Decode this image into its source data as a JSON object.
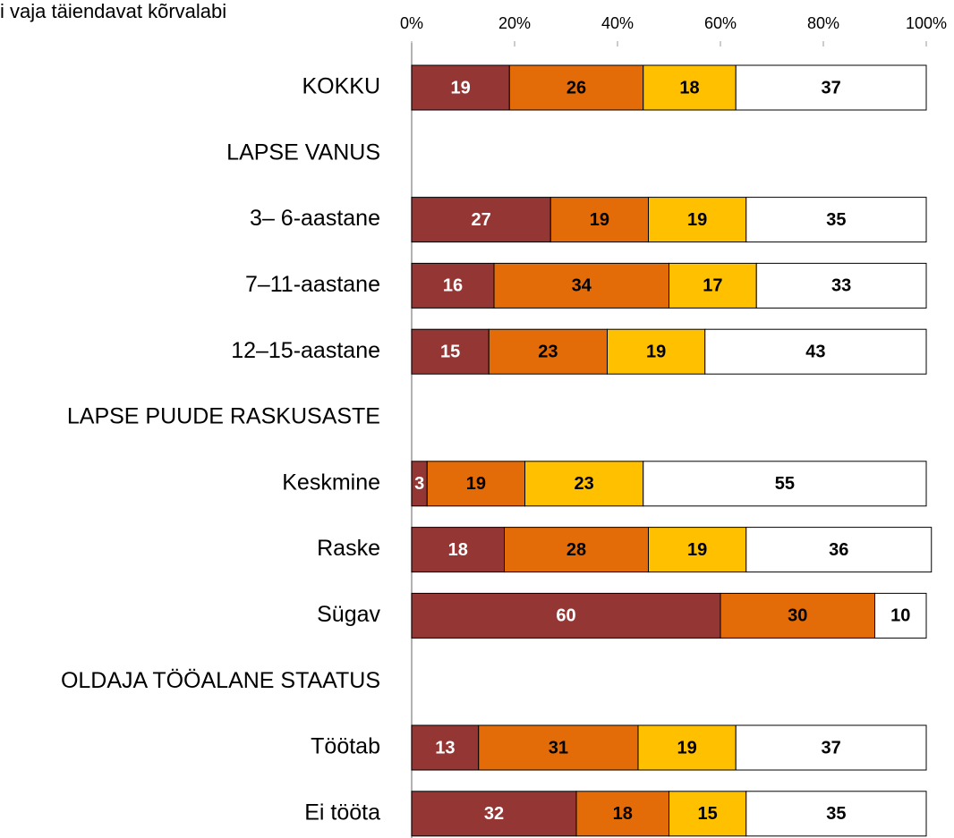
{
  "chart_data": {
    "type": "stacked_barh",
    "categories": [
      "KOKKU",
      "LAPSE VANUS",
      "3– 6-aastane",
      "7–11-aastane",
      "12–15-aastane",
      "LAPSE PUUDE RASKUSASTE",
      "Keskmine",
      "Raske",
      "Sügav",
      "OLDAJA TÖÖALANE STAATUS",
      "Töötab",
      "Ei tööta"
    ],
    "series": [
      {
        "color": "#943634",
        "values": [
          19,
          null,
          27,
          16,
          15,
          null,
          3,
          18,
          60,
          null,
          13,
          32
        ]
      },
      {
        "color": "#E36C09",
        "values": [
          26,
          null,
          19,
          34,
          23,
          null,
          19,
          28,
          30,
          null,
          31,
          18
        ]
      },
      {
        "color": "#FFC000",
        "values": [
          18,
          null,
          19,
          17,
          19,
          null,
          23,
          19,
          null,
          null,
          19,
          15
        ]
      },
      {
        "name": "i vaja täiendavat kõrvalabi",
        "color": "#FFFFFF",
        "values": [
          37,
          null,
          35,
          33,
          43,
          null,
          55,
          36,
          10,
          null,
          37,
          35
        ]
      }
    ],
    "xlim": [
      0,
      100
    ],
    "xticks": [
      {
        "value": 0,
        "label": "0%"
      },
      {
        "value": 20,
        "label": "20%"
      },
      {
        "value": 40,
        "label": "40%"
      },
      {
        "value": 60,
        "label": "60%"
      },
      {
        "value": 80,
        "label": "80%"
      },
      {
        "value": 100,
        "label": "100%"
      }
    ]
  }
}
